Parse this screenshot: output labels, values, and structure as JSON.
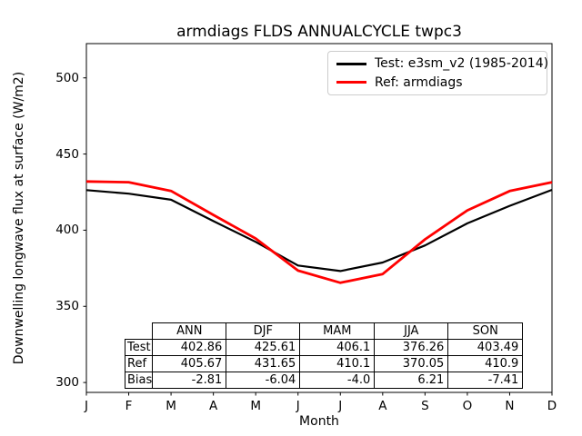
{
  "chart_data": {
    "type": "line",
    "title": "armdiags FLDS ANNUALCYCLE twpc3",
    "xlabel": "Month",
    "ylabel": "Downwelling longwave flux at surface (W/m2)",
    "x": [
      1,
      2,
      3,
      4,
      5,
      6,
      7,
      8,
      9,
      10,
      11,
      12
    ],
    "x_tick_labels": [
      "J",
      "F",
      "M",
      "A",
      "M",
      "J",
      "J",
      "A",
      "S",
      "O",
      "N",
      "D"
    ],
    "y_ticks": [
      300,
      350,
      400,
      450,
      500
    ],
    "y_tick_labels": [
      "300",
      "350",
      "400",
      "450",
      "500"
    ],
    "xlim": [
      1,
      12
    ],
    "ylim": [
      293.5,
      522.5
    ],
    "grid": false,
    "legend_position": "upper right",
    "series": [
      {
        "name": "Test: e3sm_v2 (1985-2014)",
        "color": "#000000",
        "values": [
          426.3,
          424.0,
          420.0,
          406.0,
          392.3,
          376.8,
          373.2,
          378.8,
          390.0,
          404.5,
          416.0,
          426.5
        ]
      },
      {
        "name": "Ref: armdiags",
        "color": "#ff0000",
        "values": [
          432.0,
          431.5,
          425.8,
          410.0,
          394.5,
          373.5,
          365.5,
          371.2,
          394.0,
          413.0,
          425.7,
          431.5
        ]
      }
    ],
    "stats_table": {
      "columns": [
        "ANN",
        "DJF",
        "MAM",
        "JJA",
        "SON"
      ],
      "rows": [
        {
          "label": "Test",
          "values": [
            "402.86",
            "425.61",
            "406.1",
            "376.26",
            "403.49"
          ]
        },
        {
          "label": "Ref",
          "values": [
            "405.67",
            "431.65",
            "410.1",
            "370.05",
            "410.9"
          ]
        },
        {
          "label": "Bias",
          "values": [
            "-2.81",
            "-6.04",
            "-4.0",
            "6.21",
            "-7.41"
          ]
        }
      ]
    }
  }
}
